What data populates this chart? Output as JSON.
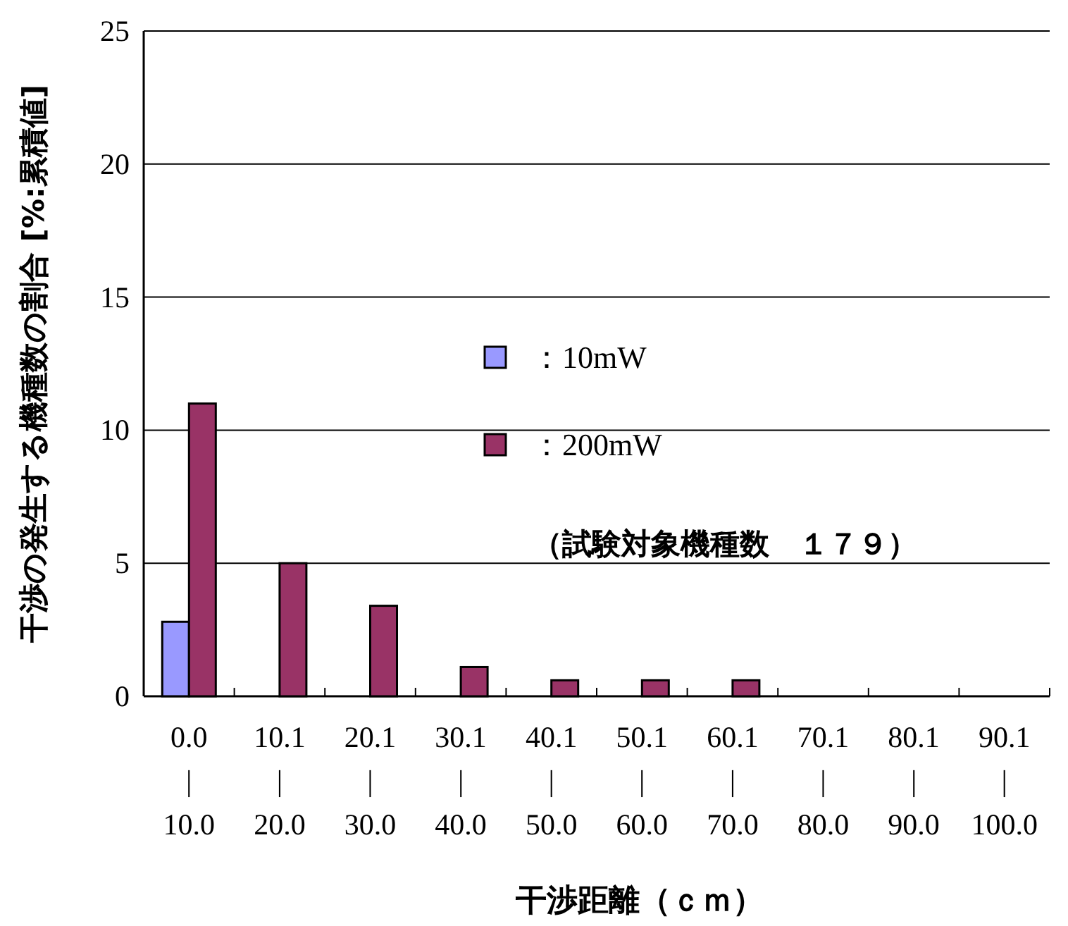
{
  "chart_data": {
    "type": "bar",
    "ylabel": "干渉の発生する機種数の割合 [%:累積値]",
    "xlabel": "干渉距離（ｃｍ）",
    "categories": [
      "0.0\n|\n10.0",
      "10.1\n|\n20.0",
      "20.1\n|\n30.0",
      "30.1\n|\n40.0",
      "40.1\n|\n50.0",
      "50.1\n|\n60.0",
      "60.1\n|\n70.0",
      "70.1\n|\n80.0",
      "80.1\n|\n90.0",
      "90.1\n|\n100.0"
    ],
    "series": [
      {
        "name": "：10mW",
        "color": "#9999ff",
        "values": [
          2.8,
          0,
          0,
          0,
          0,
          0,
          0,
          0,
          0,
          0
        ]
      },
      {
        "name": "：200mW",
        "color": "#993366",
        "values": [
          11.0,
          5.0,
          3.4,
          1.1,
          0.6,
          0.6,
          0.6,
          0,
          0,
          0
        ]
      }
    ],
    "ylim": [
      0,
      25
    ],
    "yticks": [
      0,
      5,
      10,
      15,
      20,
      25
    ],
    "grid": "y",
    "legend": "bottom left",
    "annotations": [
      "（試験対象機種数　１７９）"
    ]
  }
}
